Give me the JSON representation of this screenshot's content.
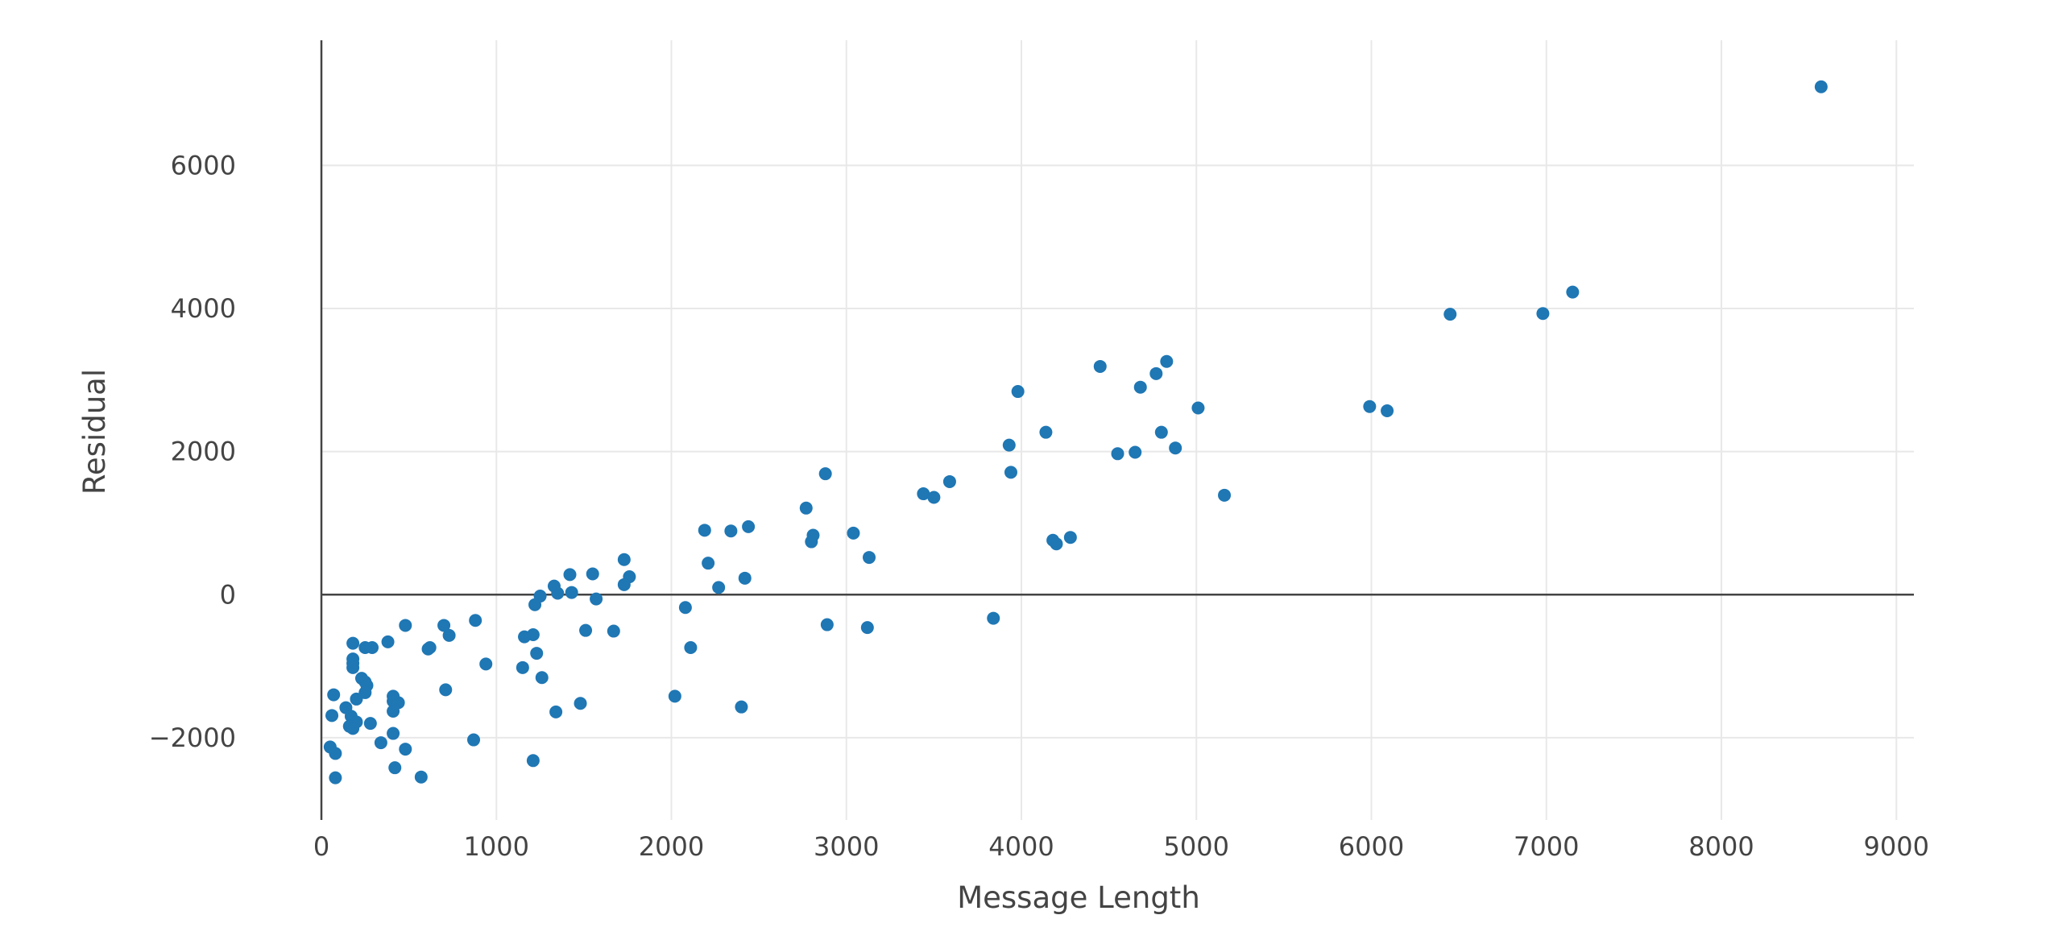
{
  "chart_data": {
    "type": "scatter",
    "xlabel": "Message Length",
    "ylabel": "Residual",
    "xlim": [
      0,
      9100
    ],
    "ylim": [
      -3150,
      7750
    ],
    "x_ticks": [
      0,
      1000,
      2000,
      3000,
      4000,
      5000,
      6000,
      7000,
      8000,
      9000
    ],
    "x_tick_labels": [
      "0",
      "1000",
      "2000",
      "3000",
      "4000",
      "5000",
      "6000",
      "7000",
      "8000",
      "9000"
    ],
    "y_ticks": [
      -2000,
      0,
      2000,
      4000,
      6000
    ],
    "y_tick_labels": [
      "−2000",
      "0",
      "2000",
      "4000",
      "6000"
    ],
    "grid": true,
    "zero_line": true,
    "marker_color": "#1f77b4",
    "points": [
      [
        8570,
        7100
      ],
      [
        7150,
        4230
      ],
      [
        6980,
        3930
      ],
      [
        6450,
        3920
      ],
      [
        5990,
        2630
      ],
      [
        6090,
        2570
      ],
      [
        5160,
        1390
      ],
      [
        5010,
        2610
      ],
      [
        4830,
        3260
      ],
      [
        4770,
        3090
      ],
      [
        4680,
        2900
      ],
      [
        4450,
        3190
      ],
      [
        4800,
        2270
      ],
      [
        4880,
        2050
      ],
      [
        4650,
        1990
      ],
      [
        4550,
        1970
      ],
      [
        4140,
        2270
      ],
      [
        3980,
        2840
      ],
      [
        3930,
        2090
      ],
      [
        3940,
        1710
      ],
      [
        4280,
        800
      ],
      [
        4180,
        760
      ],
      [
        4200,
        710
      ],
      [
        3840,
        -330
      ],
      [
        3590,
        1580
      ],
      [
        3440,
        1410
      ],
      [
        3500,
        1360
      ],
      [
        2880,
        1690
      ],
      [
        2770,
        1210
      ],
      [
        2800,
        740
      ],
      [
        2810,
        830
      ],
      [
        3040,
        860
      ],
      [
        3130,
        520
      ],
      [
        2890,
        -420
      ],
      [
        3120,
        -460
      ],
      [
        2440,
        950
      ],
      [
        2340,
        890
      ],
      [
        2190,
        900
      ],
      [
        2210,
        440
      ],
      [
        2270,
        100
      ],
      [
        2420,
        230
      ],
      [
        2080,
        -180
      ],
      [
        2110,
        -740
      ],
      [
        2020,
        -1420
      ],
      [
        2400,
        -1570
      ],
      [
        1730,
        490
      ],
      [
        1760,
        250
      ],
      [
        1730,
        140
      ],
      [
        1550,
        290
      ],
      [
        1570,
        -60
      ],
      [
        1420,
        280
      ],
      [
        1430,
        30
      ],
      [
        1330,
        120
      ],
      [
        1350,
        20
      ],
      [
        1250,
        -20
      ],
      [
        1220,
        -140
      ],
      [
        1670,
        -510
      ],
      [
        1510,
        -500
      ],
      [
        1210,
        -560
      ],
      [
        1160,
        -590
      ],
      [
        1230,
        -820
      ],
      [
        1150,
        -1020
      ],
      [
        1260,
        -1160
      ],
      [
        1480,
        -1520
      ],
      [
        1340,
        -1640
      ],
      [
        1210,
        -2320
      ],
      [
        940,
        -970
      ],
      [
        880,
        -360
      ],
      [
        730,
        -570
      ],
      [
        700,
        -430
      ],
      [
        610,
        -760
      ],
      [
        620,
        -740
      ],
      [
        710,
        -1330
      ],
      [
        870,
        -2030
      ],
      [
        480,
        -430
      ],
      [
        380,
        -660
      ],
      [
        290,
        -740
      ],
      [
        250,
        -740
      ],
      [
        180,
        -680
      ],
      [
        180,
        -900
      ],
      [
        180,
        -960
      ],
      [
        180,
        -1020
      ],
      [
        230,
        -1170
      ],
      [
        250,
        -1220
      ],
      [
        260,
        -1270
      ],
      [
        250,
        -1370
      ],
      [
        200,
        -1460
      ],
      [
        140,
        -1580
      ],
      [
        410,
        -1420
      ],
      [
        410,
        -1490
      ],
      [
        440,
        -1510
      ],
      [
        410,
        -1630
      ],
      [
        410,
        -1940
      ],
      [
        280,
        -1800
      ],
      [
        200,
        -1780
      ],
      [
        170,
        -1700
      ],
      [
        160,
        -1840
      ],
      [
        180,
        -1870
      ],
      [
        70,
        -1400
      ],
      [
        60,
        -1690
      ],
      [
        480,
        -2160
      ],
      [
        340,
        -2070
      ],
      [
        50,
        -2130
      ],
      [
        80,
        -2220
      ],
      [
        420,
        -2420
      ],
      [
        570,
        -2550
      ],
      [
        80,
        -2560
      ]
    ]
  }
}
